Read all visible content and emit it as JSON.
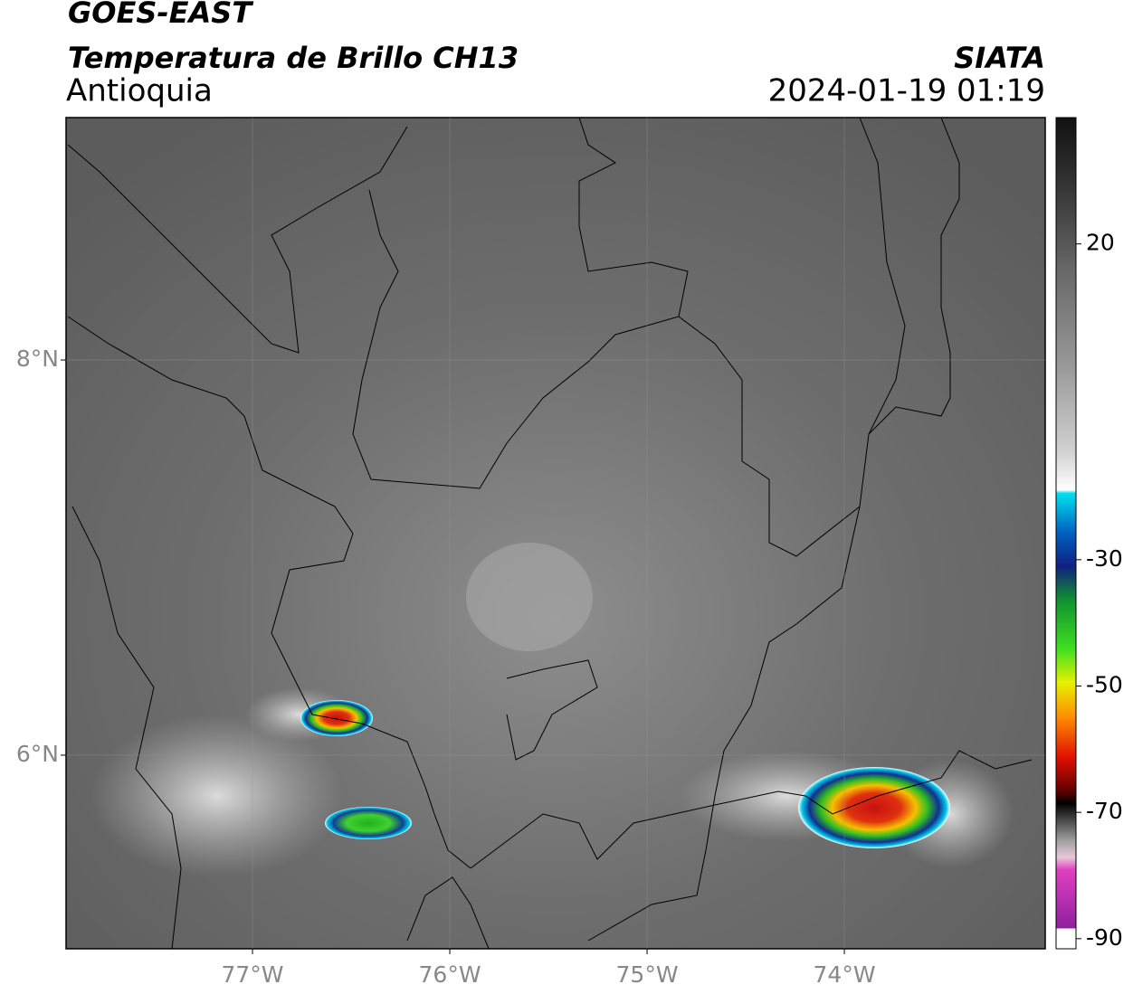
{
  "header": {
    "title": "GOES-EAST",
    "subtitle": "Temperatura de Brillo CH13",
    "region": "Antioquia",
    "source": "SIATA",
    "datetime": "2024-01-19 01:19"
  },
  "map": {
    "xlim": [
      -77.945,
      -72.982
    ],
    "ylim": [
      5.02,
      9.227
    ],
    "xticks": [
      {
        "value": -77,
        "label": "77°W"
      },
      {
        "value": -76,
        "label": "76°W"
      },
      {
        "value": -75,
        "label": "75°W"
      },
      {
        "value": -74,
        "label": "74°W"
      }
    ],
    "yticks": [
      {
        "value": 8,
        "label": "8°N"
      },
      {
        "value": 6,
        "label": "6°N"
      }
    ]
  },
  "colorbar": {
    "range": [
      -91.6,
      40
    ],
    "ticks": [
      20,
      -30,
      -50,
      -70,
      -90
    ]
  }
}
